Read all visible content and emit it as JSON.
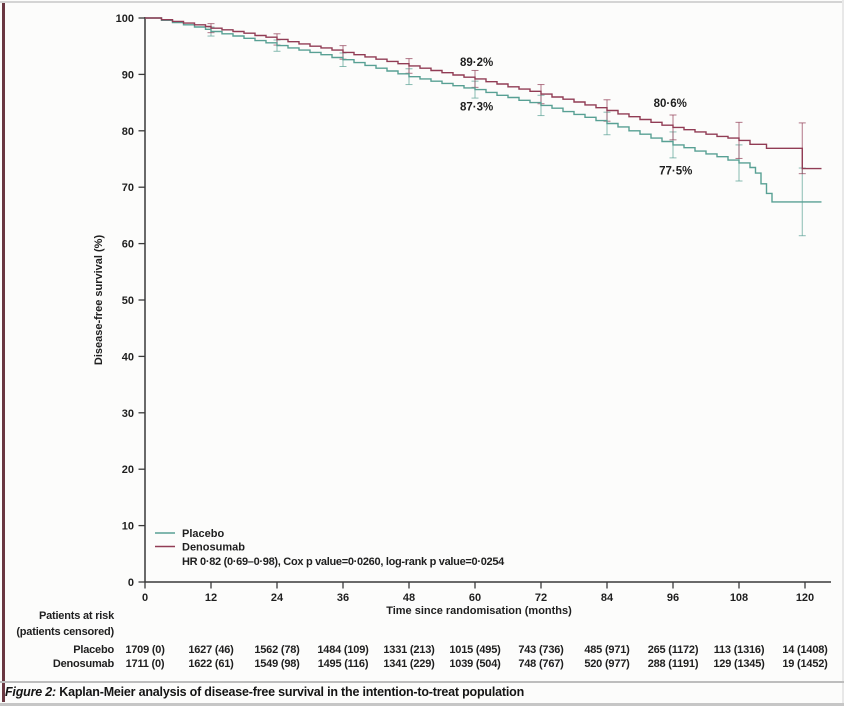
{
  "page": {
    "caption_prefix": "Figure 2:",
    "caption_text": " Kaplan-Meier analysis of disease-free survival in the intention-to-treat population"
  },
  "chart_data": {
    "type": "line",
    "subtype": "kaplan-meier-step",
    "title": "",
    "xlabel": "Time since randomisation (months)",
    "ylabel": "Disease-free survival (%)",
    "xlim": [
      0,
      123
    ],
    "ylim": [
      0,
      100
    ],
    "xticks": [
      0,
      12,
      24,
      36,
      48,
      60,
      72,
      84,
      96,
      108,
      120
    ],
    "yticks": [
      0,
      10,
      20,
      30,
      40,
      50,
      60,
      70,
      80,
      90,
      100
    ],
    "grid": false,
    "legend_position": "bottom-left-inside",
    "axis_color": "#3a3a3a",
    "legend": {
      "stats_line": "HR 0·82 (0·69–0·98), Cox p value=0·0260, log-rank p value=0·0254"
    },
    "series": [
      {
        "name": "Placebo",
        "color": "#58a094",
        "points": [
          [
            0,
            100
          ],
          [
            3,
            99.6
          ],
          [
            5,
            99.2
          ],
          [
            7,
            98.8
          ],
          [
            9,
            98.4
          ],
          [
            11,
            98.0
          ],
          [
            12,
            97.6
          ],
          [
            14,
            97.2
          ],
          [
            16,
            96.8
          ],
          [
            18,
            96.4
          ],
          [
            20,
            96.0
          ],
          [
            22,
            95.6
          ],
          [
            24,
            95.1
          ],
          [
            26,
            94.7
          ],
          [
            28,
            94.3
          ],
          [
            30,
            93.9
          ],
          [
            32,
            93.5
          ],
          [
            34,
            93.0
          ],
          [
            36,
            92.6
          ],
          [
            38,
            92.1
          ],
          [
            40,
            91.6
          ],
          [
            42,
            91.1
          ],
          [
            44,
            90.6
          ],
          [
            46,
            90.1
          ],
          [
            48,
            89.6
          ],
          [
            50,
            89.2
          ],
          [
            52,
            88.8
          ],
          [
            54,
            88.4
          ],
          [
            56,
            88.0
          ],
          [
            58,
            87.6
          ],
          [
            60,
            87.3
          ],
          [
            62,
            86.8
          ],
          [
            64,
            86.3
          ],
          [
            66,
            85.9
          ],
          [
            68,
            85.4
          ],
          [
            70,
            85.0
          ],
          [
            72,
            84.5
          ],
          [
            74,
            84.0
          ],
          [
            76,
            83.4
          ],
          [
            78,
            82.9
          ],
          [
            80,
            82.4
          ],
          [
            82,
            81.8
          ],
          [
            84,
            81.3
          ],
          [
            86,
            80.7
          ],
          [
            88,
            80.0
          ],
          [
            90,
            79.4
          ],
          [
            92,
            78.7
          ],
          [
            94,
            78.1
          ],
          [
            96,
            77.5
          ],
          [
            98,
            77.0
          ],
          [
            100,
            76.4
          ],
          [
            102,
            75.9
          ],
          [
            104,
            75.4
          ],
          [
            106,
            74.8
          ],
          [
            108,
            74.3
          ],
          [
            110,
            73.5
          ],
          [
            111,
            72.5
          ],
          [
            112,
            70.6
          ],
          [
            113,
            68.9
          ],
          [
            114,
            67.4
          ],
          [
            123,
            67.4
          ]
        ],
        "error_bars": [
          {
            "t": 12,
            "y": 97.6,
            "e": 0.8
          },
          {
            "t": 24,
            "y": 95.1,
            "e": 1.0
          },
          {
            "t": 36,
            "y": 92.6,
            "e": 1.2
          },
          {
            "t": 48,
            "y": 89.6,
            "e": 1.4
          },
          {
            "t": 60,
            "y": 87.3,
            "e": 1.5
          },
          {
            "t": 72,
            "y": 84.5,
            "e": 1.8
          },
          {
            "t": 84,
            "y": 81.3,
            "e": 2.0
          },
          {
            "t": 96,
            "y": 77.5,
            "e": 2.3
          },
          {
            "t": 108,
            "y": 74.3,
            "e": 3.2
          },
          {
            "t": 119.5,
            "y": 67.4,
            "e": 6.0
          }
        ]
      },
      {
        "name": "Denosumab",
        "color": "#913c55",
        "points": [
          [
            0,
            100
          ],
          [
            3,
            99.7
          ],
          [
            5,
            99.4
          ],
          [
            7,
            99.1
          ],
          [
            9,
            98.8
          ],
          [
            11,
            98.5
          ],
          [
            12,
            98.2
          ],
          [
            14,
            97.9
          ],
          [
            16,
            97.6
          ],
          [
            18,
            97.3
          ],
          [
            20,
            96.9
          ],
          [
            22,
            96.6
          ],
          [
            24,
            96.2
          ],
          [
            26,
            95.8
          ],
          [
            28,
            95.4
          ],
          [
            30,
            95.0
          ],
          [
            32,
            94.7
          ],
          [
            34,
            94.3
          ],
          [
            36,
            93.9
          ],
          [
            38,
            93.5
          ],
          [
            40,
            93.1
          ],
          [
            42,
            92.7
          ],
          [
            44,
            92.3
          ],
          [
            46,
            91.9
          ],
          [
            48,
            91.5
          ],
          [
            50,
            91.1
          ],
          [
            52,
            90.7
          ],
          [
            54,
            90.3
          ],
          [
            56,
            89.9
          ],
          [
            58,
            89.5
          ],
          [
            60,
            89.2
          ],
          [
            62,
            88.7
          ],
          [
            64,
            88.3
          ],
          [
            66,
            87.8
          ],
          [
            68,
            87.4
          ],
          [
            70,
            87.0
          ],
          [
            72,
            86.5
          ],
          [
            74,
            86.0
          ],
          [
            76,
            85.6
          ],
          [
            78,
            85.1
          ],
          [
            80,
            84.6
          ],
          [
            82,
            84.1
          ],
          [
            84,
            83.6
          ],
          [
            86,
            83.0
          ],
          [
            88,
            82.5
          ],
          [
            90,
            82.0
          ],
          [
            92,
            81.5
          ],
          [
            94,
            81.0
          ],
          [
            96,
            80.6
          ],
          [
            98,
            80.2
          ],
          [
            100,
            79.8
          ],
          [
            102,
            79.4
          ],
          [
            104,
            79.0
          ],
          [
            106,
            78.7
          ],
          [
            108,
            78.3
          ],
          [
            110,
            77.6
          ],
          [
            113,
            76.9
          ],
          [
            119.5,
            73.3
          ],
          [
            123,
            73.3
          ]
        ],
        "error_bars": [
          {
            "t": 12,
            "y": 98.2,
            "e": 0.8
          },
          {
            "t": 24,
            "y": 96.2,
            "e": 1.0
          },
          {
            "t": 36,
            "y": 93.9,
            "e": 1.2
          },
          {
            "t": 48,
            "y": 91.5,
            "e": 1.3
          },
          {
            "t": 60,
            "y": 89.2,
            "e": 1.5
          },
          {
            "t": 72,
            "y": 86.5,
            "e": 1.7
          },
          {
            "t": 84,
            "y": 83.6,
            "e": 1.9
          },
          {
            "t": 96,
            "y": 80.6,
            "e": 2.2
          },
          {
            "t": 108,
            "y": 78.3,
            "e": 3.2
          },
          {
            "t": 119.5,
            "y": 76.9,
            "e": 4.5
          }
        ]
      }
    ],
    "annotations": [
      {
        "label": "89·2%",
        "month": 60.3,
        "pct": 92.2
      },
      {
        "label": "87·3%",
        "month": 60.3,
        "pct": 84.3
      },
      {
        "label": "80·6%",
        "month": 95.5,
        "pct": 84.9
      },
      {
        "label": "77·5%",
        "month": 96.5,
        "pct": 73.0
      }
    ]
  },
  "risk_table": {
    "header_line1": "Patients at risk",
    "header_line2": "(patients censored)",
    "times": [
      0,
      12,
      24,
      36,
      48,
      60,
      72,
      84,
      96,
      108,
      120
    ],
    "rows": [
      {
        "label": "Placebo",
        "values": [
          "1709 (0)",
          "1627 (46)",
          "1562 (78)",
          "1484 (109)",
          "1331 (213)",
          "1015 (495)",
          "743 (736)",
          "485 (971)",
          "265 (1172)",
          "113 (1316)",
          "14 (1408)"
        ]
      },
      {
        "label": "Denosumab",
        "values": [
          "1711 (0)",
          "1622 (61)",
          "1549 (98)",
          "1495 (116)",
          "1341 (229)",
          "1039 (504)",
          "748 (767)",
          "520 (977)",
          "288 (1191)",
          "129 (1345)",
          "19 (1452)"
        ]
      }
    ]
  }
}
